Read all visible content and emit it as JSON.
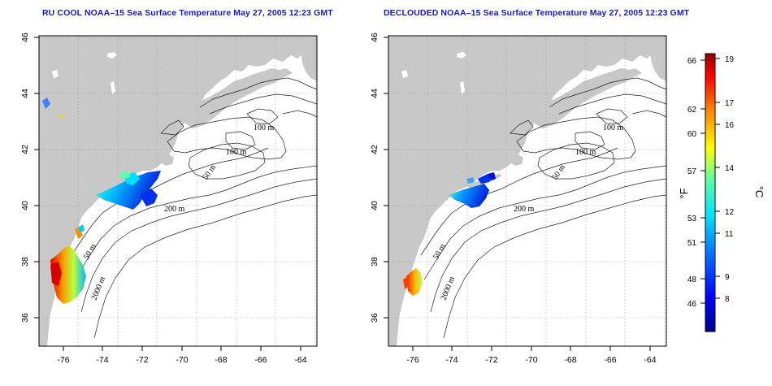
{
  "maps": [
    {
      "title": "RU COOL NOAA–15 Sea Surface Temperature May 27, 2005 12:23 GMT",
      "x_ticks": [
        "-76",
        "-74",
        "-72",
        "-70",
        "-68",
        "-66",
        "-64"
      ],
      "y_ticks": [
        "46",
        "44",
        "42",
        "40",
        "38",
        "36"
      ],
      "contour_labels": [
        "100 m",
        "100 m",
        "50 m",
        "200 m",
        "50 m",
        "2000 m"
      ]
    },
    {
      "title": "DECLOUDED NOAA–15 Sea Surface Temperature May 27, 2005 12:23 GMT",
      "x_ticks": [
        "-76",
        "-74",
        "-72",
        "-70",
        "-68",
        "-66",
        "-64"
      ],
      "y_ticks": [
        "46",
        "44",
        "42",
        "40",
        "38",
        "36"
      ],
      "contour_labels": [
        "100 m",
        "100 m",
        "50 m",
        "200 m",
        "50 m",
        "2000 m"
      ]
    }
  ],
  "colorbar": {
    "fahrenheit_ticks": [
      "66",
      "62",
      "60",
      "57",
      "53",
      "51",
      "48",
      "46"
    ],
    "celsius_ticks": [
      "19",
      "17",
      "16",
      "14",
      "12",
      "11",
      "9",
      "8"
    ],
    "fahrenheit_unit": "°F",
    "celsius_unit": "°C"
  },
  "colors": {
    "land": "#c8c8c8",
    "ocean": "#ffffff",
    "title": "#1a1aa6",
    "grid": "#999999"
  }
}
